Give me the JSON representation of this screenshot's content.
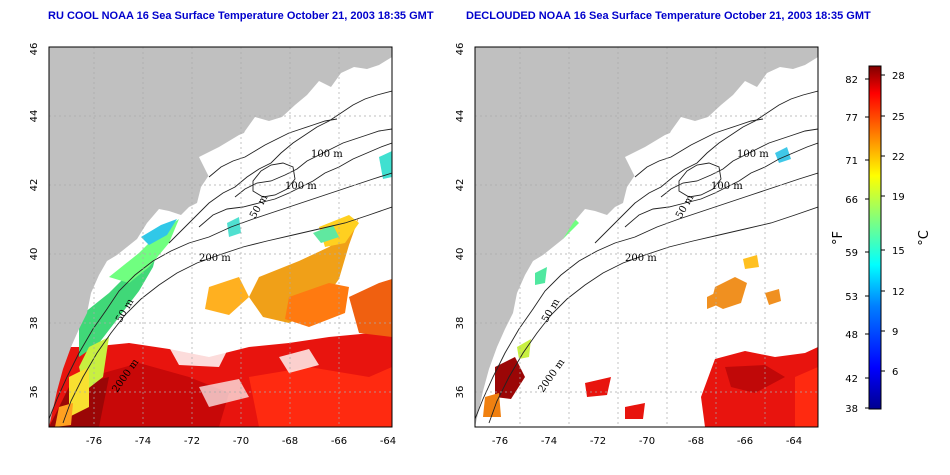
{
  "titles": {
    "left": "RU COOL NOAA 16 Sea Surface Temperature October 21, 2003 18:35 GMT",
    "right": "DECLOUDED NOAA 16 Sea Surface Temperature October 21, 2003 18:35 GMT"
  },
  "axes": {
    "lon_ticks": [
      "-76",
      "-74",
      "-72",
      "-70",
      "-68",
      "-66",
      "-64"
    ],
    "lat_ticks": [
      "36",
      "38",
      "40",
      "42",
      "44",
      "46"
    ]
  },
  "contour_labels": [
    "100 m",
    "100 m",
    "50 m",
    "200 m",
    "50 m",
    "2000 m"
  ],
  "colorbar": {
    "fahrenheit_label": "°F",
    "celsius_label": "°C",
    "fahrenheit_ticks": [
      "82",
      "77",
      "71",
      "66",
      "59",
      "53",
      "48",
      "42",
      "38"
    ],
    "celsius_ticks": [
      "28",
      "25",
      "22",
      "19",
      "15",
      "12",
      "9",
      "6"
    ]
  },
  "colors": {
    "land": "#c0c0c0",
    "title": "#0000cc",
    "colormap": [
      "#00008f",
      "#0000ff",
      "#007fff",
      "#00ffff",
      "#7fff7f",
      "#ffff00",
      "#ff7f00",
      "#ff0000",
      "#7f0000"
    ]
  }
}
